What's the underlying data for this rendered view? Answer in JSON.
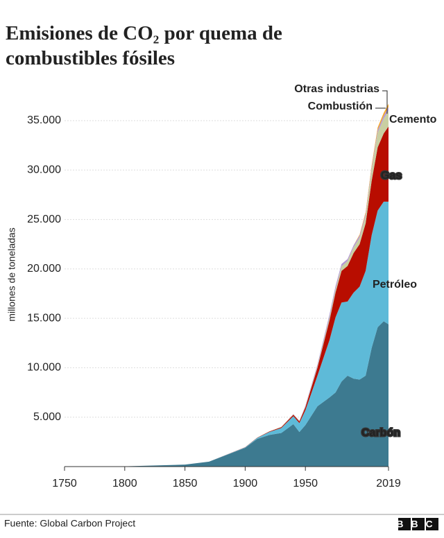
{
  "chart_data": {
    "type": "stacked_area",
    "title": "Emisiones de CO₂ por quema de combustibles fósiles",
    "y_label": "millones de toneladas",
    "source": "Fuente: Global Carbon Project",
    "logo": "BBC",
    "x": [
      1750,
      1800,
      1850,
      1870,
      1900,
      1910,
      1920,
      1930,
      1940,
      1945,
      1950,
      1960,
      1970,
      1975,
      1980,
      1985,
      1990,
      1995,
      2000,
      2005,
      2010,
      2015,
      2019
    ],
    "xlim": [
      1750,
      2019
    ],
    "xticks": [
      1750,
      1800,
      1850,
      1900,
      1950,
      2019
    ],
    "ylim": [
      0,
      37000
    ],
    "yticks": [
      {
        "value": 5000,
        "label": "5.000"
      },
      {
        "value": 10000,
        "label": "10.000"
      },
      {
        "value": 15000,
        "label": "15.000"
      },
      {
        "value": 20000,
        "label": "20.000"
      },
      {
        "value": 25000,
        "label": "25.000"
      },
      {
        "value": 30000,
        "label": "30.000"
      },
      {
        "value": 35000,
        "label": "35.000"
      }
    ],
    "grid": true,
    "series": [
      {
        "name": "Carbón",
        "color": "#3d7a90",
        "label_color": "#ffffff",
        "values": [
          9,
          30,
          200,
          500,
          1900,
          2800,
          3200,
          3400,
          4300,
          3500,
          4200,
          6100,
          7000,
          7500,
          8600,
          9200,
          8900,
          8800,
          9200,
          12000,
          14100,
          14700,
          14400
        ]
      },
      {
        "name": "Petróleo",
        "color": "#5ebad8",
        "label_color": "#1a7fa5",
        "values": [
          0,
          0,
          0,
          1,
          50,
          100,
          300,
          500,
          800,
          900,
          1500,
          3100,
          5800,
          7600,
          8000,
          7500,
          8700,
          9400,
          10600,
          11400,
          11800,
          12100,
          12400
        ]
      },
      {
        "name": "Gas",
        "color": "#b80d00",
        "label_color": "#ffffff",
        "values": [
          0,
          0,
          0,
          0,
          10,
          30,
          50,
          90,
          150,
          180,
          300,
          800,
          2000,
          2500,
          3200,
          3600,
          4000,
          4300,
          4800,
          5500,
          6400,
          6900,
          7600
        ]
      },
      {
        "name": "Cemento",
        "color": "#c9cfa2",
        "label_color": "#8eb36a",
        "values": [
          0,
          0,
          0,
          0,
          0,
          5,
          10,
          30,
          40,
          40,
          70,
          150,
          300,
          350,
          450,
          500,
          580,
          650,
          750,
          1100,
          1500,
          1500,
          1600
        ]
      },
      {
        "name": "Combustión",
        "color": "#b398d4",
        "label_color": "#9b6fcb",
        "values": [
          0,
          0,
          0,
          0,
          0,
          0,
          0,
          0,
          20,
          30,
          100,
          180,
          300,
          300,
          250,
          200,
          200,
          220,
          240,
          250,
          260,
          300,
          400
        ]
      },
      {
        "name": "Otras industrias",
        "color": "#f5a623",
        "label_color": "#f5a623",
        "values": [
          0,
          0,
          0,
          0,
          0,
          0,
          0,
          0,
          0,
          0,
          0,
          0,
          0,
          0,
          0,
          0,
          0,
          100,
          150,
          200,
          250,
          280,
          300
        ]
      }
    ]
  }
}
